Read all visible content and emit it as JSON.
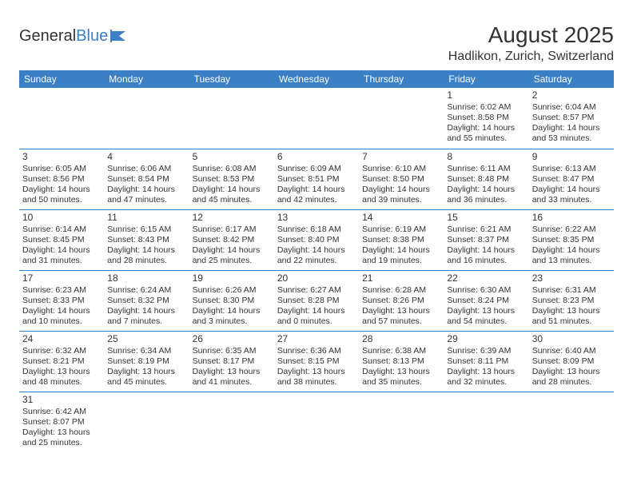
{
  "logo": {
    "text1": "General",
    "text2": "Blue"
  },
  "title": "August 2025",
  "location": "Hadlikon, Zurich, Switzerland",
  "colors": {
    "header_bg": "#3b7fc4",
    "header_text": "#ffffff",
    "border": "#3b7fc4",
    "text": "#333333",
    "background": "#ffffff"
  },
  "fonts": {
    "title_size": 28,
    "location_size": 16,
    "dayheader_size": 12,
    "daynum_size": 12,
    "cell_size": 10.5
  },
  "day_headers": [
    "Sunday",
    "Monday",
    "Tuesday",
    "Wednesday",
    "Thursday",
    "Friday",
    "Saturday"
  ],
  "weeks": [
    [
      null,
      null,
      null,
      null,
      null,
      {
        "n": "1",
        "sunrise": "Sunrise: 6:02 AM",
        "sunset": "Sunset: 8:58 PM",
        "daylight1": "Daylight: 14 hours",
        "daylight2": "and 55 minutes."
      },
      {
        "n": "2",
        "sunrise": "Sunrise: 6:04 AM",
        "sunset": "Sunset: 8:57 PM",
        "daylight1": "Daylight: 14 hours",
        "daylight2": "and 53 minutes."
      }
    ],
    [
      {
        "n": "3",
        "sunrise": "Sunrise: 6:05 AM",
        "sunset": "Sunset: 8:56 PM",
        "daylight1": "Daylight: 14 hours",
        "daylight2": "and 50 minutes."
      },
      {
        "n": "4",
        "sunrise": "Sunrise: 6:06 AM",
        "sunset": "Sunset: 8:54 PM",
        "daylight1": "Daylight: 14 hours",
        "daylight2": "and 47 minutes."
      },
      {
        "n": "5",
        "sunrise": "Sunrise: 6:08 AM",
        "sunset": "Sunset: 8:53 PM",
        "daylight1": "Daylight: 14 hours",
        "daylight2": "and 45 minutes."
      },
      {
        "n": "6",
        "sunrise": "Sunrise: 6:09 AM",
        "sunset": "Sunset: 8:51 PM",
        "daylight1": "Daylight: 14 hours",
        "daylight2": "and 42 minutes."
      },
      {
        "n": "7",
        "sunrise": "Sunrise: 6:10 AM",
        "sunset": "Sunset: 8:50 PM",
        "daylight1": "Daylight: 14 hours",
        "daylight2": "and 39 minutes."
      },
      {
        "n": "8",
        "sunrise": "Sunrise: 6:11 AM",
        "sunset": "Sunset: 8:48 PM",
        "daylight1": "Daylight: 14 hours",
        "daylight2": "and 36 minutes."
      },
      {
        "n": "9",
        "sunrise": "Sunrise: 6:13 AM",
        "sunset": "Sunset: 8:47 PM",
        "daylight1": "Daylight: 14 hours",
        "daylight2": "and 33 minutes."
      }
    ],
    [
      {
        "n": "10",
        "sunrise": "Sunrise: 6:14 AM",
        "sunset": "Sunset: 8:45 PM",
        "daylight1": "Daylight: 14 hours",
        "daylight2": "and 31 minutes."
      },
      {
        "n": "11",
        "sunrise": "Sunrise: 6:15 AM",
        "sunset": "Sunset: 8:43 PM",
        "daylight1": "Daylight: 14 hours",
        "daylight2": "and 28 minutes."
      },
      {
        "n": "12",
        "sunrise": "Sunrise: 6:17 AM",
        "sunset": "Sunset: 8:42 PM",
        "daylight1": "Daylight: 14 hours",
        "daylight2": "and 25 minutes."
      },
      {
        "n": "13",
        "sunrise": "Sunrise: 6:18 AM",
        "sunset": "Sunset: 8:40 PM",
        "daylight1": "Daylight: 14 hours",
        "daylight2": "and 22 minutes."
      },
      {
        "n": "14",
        "sunrise": "Sunrise: 6:19 AM",
        "sunset": "Sunset: 8:38 PM",
        "daylight1": "Daylight: 14 hours",
        "daylight2": "and 19 minutes."
      },
      {
        "n": "15",
        "sunrise": "Sunrise: 6:21 AM",
        "sunset": "Sunset: 8:37 PM",
        "daylight1": "Daylight: 14 hours",
        "daylight2": "and 16 minutes."
      },
      {
        "n": "16",
        "sunrise": "Sunrise: 6:22 AM",
        "sunset": "Sunset: 8:35 PM",
        "daylight1": "Daylight: 14 hours",
        "daylight2": "and 13 minutes."
      }
    ],
    [
      {
        "n": "17",
        "sunrise": "Sunrise: 6:23 AM",
        "sunset": "Sunset: 8:33 PM",
        "daylight1": "Daylight: 14 hours",
        "daylight2": "and 10 minutes."
      },
      {
        "n": "18",
        "sunrise": "Sunrise: 6:24 AM",
        "sunset": "Sunset: 8:32 PM",
        "daylight1": "Daylight: 14 hours",
        "daylight2": "and 7 minutes."
      },
      {
        "n": "19",
        "sunrise": "Sunrise: 6:26 AM",
        "sunset": "Sunset: 8:30 PM",
        "daylight1": "Daylight: 14 hours",
        "daylight2": "and 3 minutes."
      },
      {
        "n": "20",
        "sunrise": "Sunrise: 6:27 AM",
        "sunset": "Sunset: 8:28 PM",
        "daylight1": "Daylight: 14 hours",
        "daylight2": "and 0 minutes."
      },
      {
        "n": "21",
        "sunrise": "Sunrise: 6:28 AM",
        "sunset": "Sunset: 8:26 PM",
        "daylight1": "Daylight: 13 hours",
        "daylight2": "and 57 minutes."
      },
      {
        "n": "22",
        "sunrise": "Sunrise: 6:30 AM",
        "sunset": "Sunset: 8:24 PM",
        "daylight1": "Daylight: 13 hours",
        "daylight2": "and 54 minutes."
      },
      {
        "n": "23",
        "sunrise": "Sunrise: 6:31 AM",
        "sunset": "Sunset: 8:23 PM",
        "daylight1": "Daylight: 13 hours",
        "daylight2": "and 51 minutes."
      }
    ],
    [
      {
        "n": "24",
        "sunrise": "Sunrise: 6:32 AM",
        "sunset": "Sunset: 8:21 PM",
        "daylight1": "Daylight: 13 hours",
        "daylight2": "and 48 minutes."
      },
      {
        "n": "25",
        "sunrise": "Sunrise: 6:34 AM",
        "sunset": "Sunset: 8:19 PM",
        "daylight1": "Daylight: 13 hours",
        "daylight2": "and 45 minutes."
      },
      {
        "n": "26",
        "sunrise": "Sunrise: 6:35 AM",
        "sunset": "Sunset: 8:17 PM",
        "daylight1": "Daylight: 13 hours",
        "daylight2": "and 41 minutes."
      },
      {
        "n": "27",
        "sunrise": "Sunrise: 6:36 AM",
        "sunset": "Sunset: 8:15 PM",
        "daylight1": "Daylight: 13 hours",
        "daylight2": "and 38 minutes."
      },
      {
        "n": "28",
        "sunrise": "Sunrise: 6:38 AM",
        "sunset": "Sunset: 8:13 PM",
        "daylight1": "Daylight: 13 hours",
        "daylight2": "and 35 minutes."
      },
      {
        "n": "29",
        "sunrise": "Sunrise: 6:39 AM",
        "sunset": "Sunset: 8:11 PM",
        "daylight1": "Daylight: 13 hours",
        "daylight2": "and 32 minutes."
      },
      {
        "n": "30",
        "sunrise": "Sunrise: 6:40 AM",
        "sunset": "Sunset: 8:09 PM",
        "daylight1": "Daylight: 13 hours",
        "daylight2": "and 28 minutes."
      }
    ],
    [
      {
        "n": "31",
        "sunrise": "Sunrise: 6:42 AM",
        "sunset": "Sunset: 8:07 PM",
        "daylight1": "Daylight: 13 hours",
        "daylight2": "and 25 minutes."
      },
      null,
      null,
      null,
      null,
      null,
      null
    ]
  ]
}
